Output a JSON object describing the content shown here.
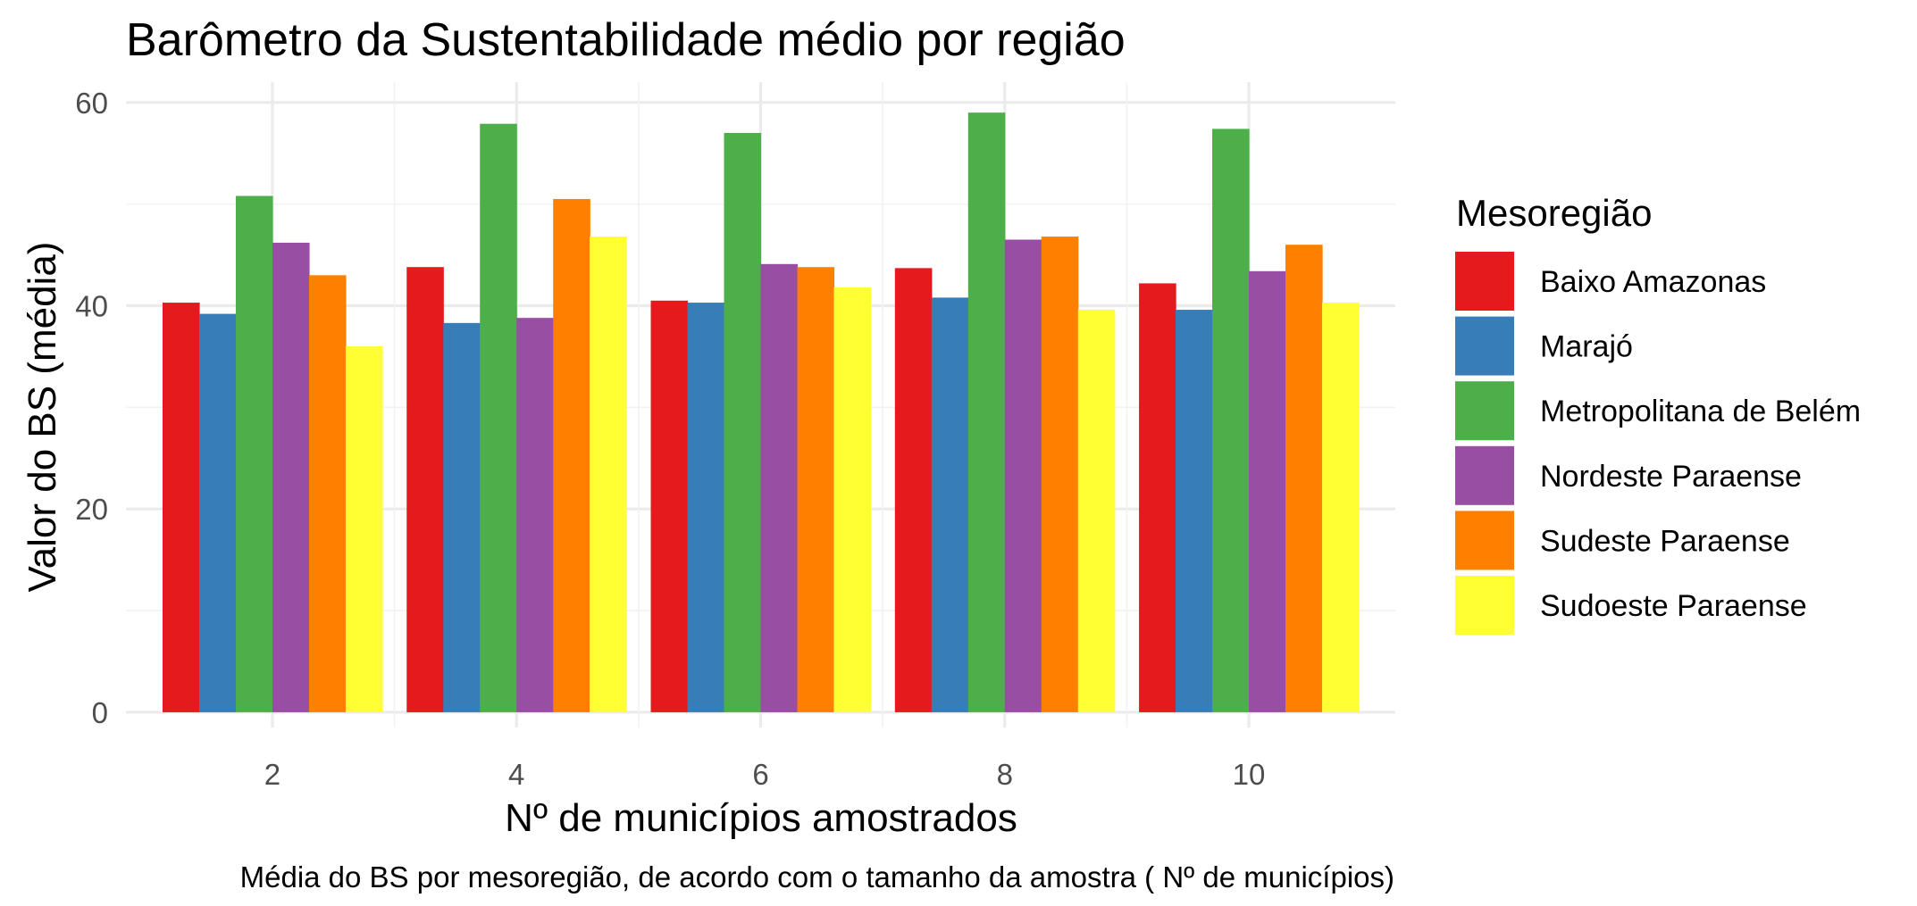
{
  "chart_data": {
    "type": "bar",
    "title": "Barômetro da Sustentabilidade médio por região",
    "xlabel": "Nº de municípios amostrados",
    "ylabel": "Valor do BS (média)",
    "caption": "Média do BS por mesoregião, de acordo com o tamanho da amostra ( Nº de municípios)",
    "categories": [
      "2",
      "4",
      "6",
      "8",
      "10"
    ],
    "x": [
      2,
      4,
      6,
      8,
      10
    ],
    "xlim": [
      0.8,
      11.2
    ],
    "ylim": [
      -1.5,
      62
    ],
    "yticks": [
      0,
      20,
      40,
      60
    ],
    "ytick_labels": [
      "0",
      "20",
      "40",
      "60"
    ],
    "grid": true,
    "legend": {
      "title": "Mesoregião",
      "position": "right"
    },
    "series": [
      {
        "name": "Baixo Amazonas",
        "color": "#E41A1C",
        "values": [
          40.3,
          43.8,
          40.5,
          43.7,
          42.2
        ]
      },
      {
        "name": "Marajó",
        "color": "#377EB8",
        "values": [
          39.2,
          38.3,
          40.3,
          40.8,
          39.6
        ]
      },
      {
        "name": "Metropolitana de Belém",
        "color": "#4DAF4A",
        "values": [
          50.8,
          57.9,
          57.0,
          59.0,
          57.4
        ]
      },
      {
        "name": "Nordeste Paraense",
        "color": "#984EA3",
        "values": [
          46.2,
          38.8,
          44.1,
          46.5,
          43.4
        ]
      },
      {
        "name": "Sudeste Paraense",
        "color": "#FF7F00",
        "values": [
          43.0,
          50.5,
          43.8,
          46.8,
          46.0
        ]
      },
      {
        "name": "Sudoeste Paraense",
        "color": "#FFFF33",
        "values": [
          36.0,
          46.8,
          41.8,
          39.6,
          40.3
        ]
      }
    ]
  }
}
